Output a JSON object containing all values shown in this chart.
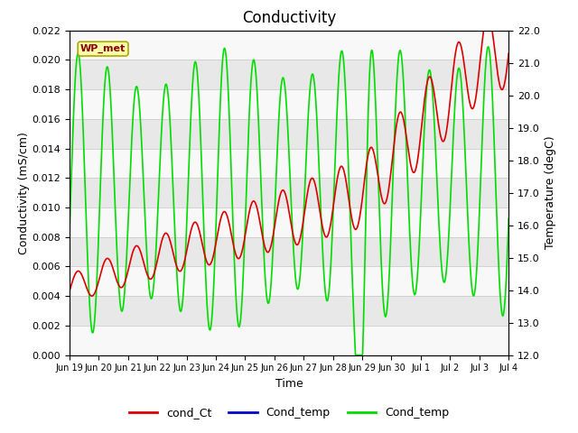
{
  "title": "Conductivity",
  "xlabel": "Time",
  "ylabel_left": "Conductivity (mS/cm)",
  "ylabel_right": "Temperature (degC)",
  "ylim_left": [
    0.0,
    0.022
  ],
  "ylim_right": [
    12.0,
    22.0
  ],
  "yticks_left": [
    0.0,
    0.002,
    0.004,
    0.006,
    0.008,
    0.01,
    0.012,
    0.014,
    0.016,
    0.018,
    0.02,
    0.022
  ],
  "yticks_right": [
    12.0,
    13.0,
    14.0,
    15.0,
    16.0,
    17.0,
    18.0,
    19.0,
    20.0,
    21.0,
    22.0
  ],
  "xtick_labels": [
    "Jun 19",
    "Jun 20",
    "Jun 21",
    "Jun 22",
    "Jun 23",
    "Jun 24",
    "Jun 25",
    "Jun 26",
    "Jun 27",
    "Jun 28",
    "Jun 29",
    "Jun 30",
    "Jul 1",
    "Jul 2",
    "Jul 3",
    "Jul 4"
  ],
  "fig_bg_color": "#ffffff",
  "plot_bg_color": "#ffffff",
  "stripe_odd": "#e8e8e8",
  "stripe_even": "#f8f8f8",
  "legend_entries": [
    "cond_Ct",
    "Cond_temp",
    "Cond_temp"
  ],
  "legend_colors": [
    "#dd0000",
    "#0000cc",
    "#00dd00"
  ],
  "wp_met_label": "WP_met",
  "wp_met_bg": "#ffffaa",
  "wp_met_border": "#aaaa00",
  "wp_met_text_color": "#880000"
}
